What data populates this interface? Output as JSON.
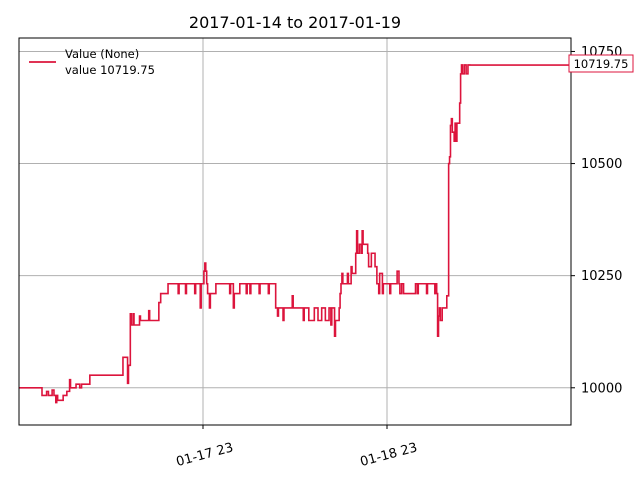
{
  "chart_data": {
    "type": "line",
    "title": "2017-01-14 to 2017-01-19",
    "xlabel": "",
    "ylabel": "",
    "x_range_days": [
      0,
      3
    ],
    "x_ticks": [
      {
        "x": 1,
        "label": "01-17 23"
      },
      {
        "x": 2,
        "label": "01-18 23"
      }
    ],
    "ylim": [
      9917,
      10780
    ],
    "y_ticks": [
      10000,
      10250,
      10500,
      10750
    ],
    "y_tick_labels": [
      "10000",
      "10250",
      "10500",
      "10750"
    ],
    "grid": true,
    "y_axis_side": "right",
    "legend": {
      "placement": "top-left",
      "entries": [
        "Value (None)",
        "value 10719.75"
      ]
    },
    "last_value_label": "10719.75",
    "series": [
      {
        "name": "Value (None)",
        "color": "#dc143c",
        "points": [
          [
            0.0,
            10000
          ],
          [
            0.12,
            10000
          ],
          [
            0.125,
            9983
          ],
          [
            0.14,
            9983
          ],
          [
            0.15,
            9992
          ],
          [
            0.16,
            9983
          ],
          [
            0.17,
            9983
          ],
          [
            0.18,
            9995
          ],
          [
            0.19,
            9983
          ],
          [
            0.2,
            9967
          ],
          [
            0.205,
            9983
          ],
          [
            0.21,
            9972
          ],
          [
            0.23,
            9972
          ],
          [
            0.24,
            9983
          ],
          [
            0.25,
            9983
          ],
          [
            0.26,
            9992
          ],
          [
            0.27,
            9992
          ],
          [
            0.275,
            10018
          ],
          [
            0.28,
            10000
          ],
          [
            0.3,
            10000
          ],
          [
            0.31,
            10008
          ],
          [
            0.33,
            10000
          ],
          [
            0.34,
            10008
          ],
          [
            0.36,
            10008
          ],
          [
            0.38,
            10008
          ],
          [
            0.385,
            10028
          ],
          [
            0.44,
            10028
          ],
          [
            0.56,
            10028
          ],
          [
            0.565,
            10068
          ],
          [
            0.585,
            10068
          ],
          [
            0.59,
            10010
          ],
          [
            0.595,
            10050
          ],
          [
            0.6,
            10050
          ],
          [
            0.605,
            10165
          ],
          [
            0.61,
            10140
          ],
          [
            0.62,
            10165
          ],
          [
            0.625,
            10140
          ],
          [
            0.64,
            10140
          ],
          [
            0.65,
            10140
          ],
          [
            0.655,
            10160
          ],
          [
            0.66,
            10150
          ],
          [
            0.7,
            10150
          ],
          [
            0.705,
            10172
          ],
          [
            0.71,
            10150
          ],
          [
            0.75,
            10150
          ],
          [
            0.76,
            10190
          ],
          [
            0.77,
            10210
          ],
          [
            0.8,
            10210
          ],
          [
            0.81,
            10232
          ],
          [
            0.86,
            10232
          ],
          [
            0.865,
            10210
          ],
          [
            0.87,
            10232
          ],
          [
            0.9,
            10232
          ],
          [
            0.905,
            10210
          ],
          [
            0.91,
            10232
          ],
          [
            0.95,
            10232
          ],
          [
            0.955,
            10210
          ],
          [
            0.96,
            10232
          ],
          [
            0.98,
            10232
          ],
          [
            0.985,
            10178
          ],
          [
            0.99,
            10232
          ],
          [
            1.0,
            10232
          ],
          [
            1.005,
            10260
          ],
          [
            1.01,
            10278
          ],
          [
            1.015,
            10260
          ],
          [
            1.02,
            10232
          ],
          [
            1.025,
            10210
          ],
          [
            1.03,
            10210
          ],
          [
            1.035,
            10178
          ],
          [
            1.04,
            10210
          ],
          [
            1.06,
            10210
          ],
          [
            1.07,
            10232
          ],
          [
            1.14,
            10232
          ],
          [
            1.145,
            10210
          ],
          [
            1.15,
            10232
          ],
          [
            1.16,
            10232
          ],
          [
            1.165,
            10178
          ],
          [
            1.17,
            10210
          ],
          [
            1.19,
            10210
          ],
          [
            1.2,
            10232
          ],
          [
            1.23,
            10232
          ],
          [
            1.235,
            10210
          ],
          [
            1.24,
            10232
          ],
          [
            1.25,
            10232
          ],
          [
            1.255,
            10210
          ],
          [
            1.26,
            10232
          ],
          [
            1.3,
            10232
          ],
          [
            1.305,
            10210
          ],
          [
            1.31,
            10232
          ],
          [
            1.35,
            10232
          ],
          [
            1.355,
            10210
          ],
          [
            1.36,
            10232
          ],
          [
            1.39,
            10232
          ],
          [
            1.395,
            10178
          ],
          [
            1.4,
            10178
          ],
          [
            1.405,
            10160
          ],
          [
            1.41,
            10178
          ],
          [
            1.43,
            10178
          ],
          [
            1.435,
            10150
          ],
          [
            1.44,
            10178
          ],
          [
            1.46,
            10178
          ],
          [
            1.48,
            10178
          ],
          [
            1.485,
            10205
          ],
          [
            1.49,
            10178
          ],
          [
            1.54,
            10178
          ],
          [
            1.545,
            10150
          ],
          [
            1.55,
            10178
          ],
          [
            1.57,
            10178
          ],
          [
            1.575,
            10150
          ],
          [
            1.6,
            10150
          ],
          [
            1.605,
            10178
          ],
          [
            1.62,
            10178
          ],
          [
            1.625,
            10150
          ],
          [
            1.64,
            10150
          ],
          [
            1.645,
            10178
          ],
          [
            1.66,
            10178
          ],
          [
            1.665,
            10150
          ],
          [
            1.68,
            10150
          ],
          [
            1.685,
            10178
          ],
          [
            1.69,
            10178
          ],
          [
            1.695,
            10140
          ],
          [
            1.7,
            10178
          ],
          [
            1.71,
            10178
          ],
          [
            1.715,
            10115
          ],
          [
            1.72,
            10150
          ],
          [
            1.73,
            10150
          ],
          [
            1.74,
            10178
          ],
          [
            1.745,
            10210
          ],
          [
            1.75,
            10232
          ],
          [
            1.755,
            10255
          ],
          [
            1.76,
            10232
          ],
          [
            1.78,
            10232
          ],
          [
            1.785,
            10255
          ],
          [
            1.79,
            10232
          ],
          [
            1.8,
            10232
          ],
          [
            1.805,
            10270
          ],
          [
            1.81,
            10255
          ],
          [
            1.82,
            10255
          ],
          [
            1.83,
            10300
          ],
          [
            1.835,
            10350
          ],
          [
            1.84,
            10300
          ],
          [
            1.85,
            10320
          ],
          [
            1.86,
            10300
          ],
          [
            1.865,
            10350
          ],
          [
            1.87,
            10320
          ],
          [
            1.89,
            10320
          ],
          [
            1.895,
            10300
          ],
          [
            1.9,
            10270
          ],
          [
            1.91,
            10270
          ],
          [
            1.915,
            10300
          ],
          [
            1.93,
            10300
          ],
          [
            1.935,
            10270
          ],
          [
            1.94,
            10270
          ],
          [
            1.945,
            10232
          ],
          [
            1.95,
            10232
          ],
          [
            1.955,
            10210
          ],
          [
            1.96,
            10255
          ],
          [
            1.97,
            10255
          ],
          [
            1.975,
            10210
          ],
          [
            1.98,
            10232
          ],
          [
            2.0,
            10232
          ],
          [
            2.01,
            10232
          ],
          [
            2.015,
            10210
          ],
          [
            2.02,
            10232
          ],
          [
            2.05,
            10232
          ],
          [
            2.055,
            10260
          ],
          [
            2.06,
            10260
          ],
          [
            2.065,
            10232
          ],
          [
            2.07,
            10210
          ],
          [
            2.08,
            10232
          ],
          [
            2.09,
            10210
          ],
          [
            2.15,
            10210
          ],
          [
            2.155,
            10232
          ],
          [
            2.16,
            10232
          ],
          [
            2.165,
            10210
          ],
          [
            2.17,
            10232
          ],
          [
            2.21,
            10232
          ],
          [
            2.215,
            10210
          ],
          [
            2.22,
            10232
          ],
          [
            2.255,
            10232
          ],
          [
            2.26,
            10210
          ],
          [
            2.265,
            10232
          ],
          [
            2.27,
            10210
          ],
          [
            2.275,
            10115
          ],
          [
            2.28,
            10160
          ],
          [
            2.285,
            10178
          ],
          [
            2.29,
            10150
          ],
          [
            2.3,
            10178
          ],
          [
            2.32,
            10178
          ],
          [
            2.325,
            10205
          ],
          [
            2.33,
            10205
          ],
          [
            2.335,
            10500
          ],
          [
            2.34,
            10515
          ],
          [
            2.345,
            10585
          ],
          [
            2.35,
            10600
          ],
          [
            2.355,
            10570
          ],
          [
            2.36,
            10570
          ],
          [
            2.365,
            10550
          ],
          [
            2.37,
            10590
          ],
          [
            2.375,
            10550
          ],
          [
            2.38,
            10590
          ],
          [
            2.39,
            10590
          ],
          [
            2.395,
            10635
          ],
          [
            2.4,
            10700
          ],
          [
            2.405,
            10720
          ],
          [
            2.41,
            10700
          ],
          [
            2.42,
            10720
          ],
          [
            2.43,
            10700
          ],
          [
            2.44,
            10720
          ],
          [
            2.45,
            10719.75
          ]
        ]
      }
    ]
  },
  "colors": {
    "series": "#dc143c",
    "grid": "#b0b0b0",
    "axis": "#000000"
  }
}
